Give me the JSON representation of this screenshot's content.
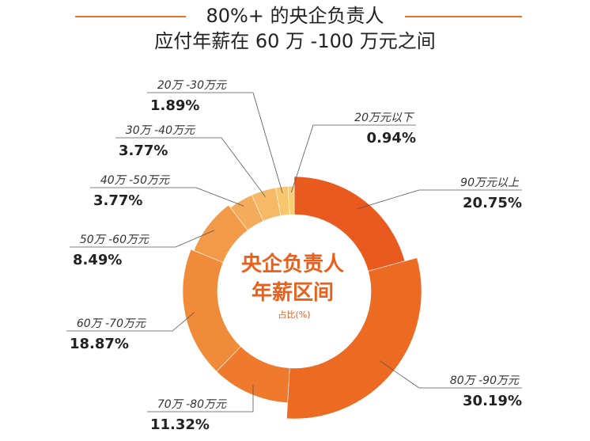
{
  "title": {
    "line1": "80%+ 的央企负责人",
    "line2": "应付年薪在 60 万 -100 万元之间"
  },
  "center": {
    "line1": "央企负责人",
    "line2": "年薪区间",
    "line3": "占比(%)"
  },
  "colors": {
    "accent": "#E8742A",
    "center_text": "#E8601C"
  },
  "chart_data": {
    "type": "pie",
    "variant": "donut",
    "title": "80%+ 的央企负责人 应付年薪在 60 万 -100 万元之间",
    "unit": "%",
    "slices": [
      {
        "label": "90万元以上",
        "value": 20.75,
        "display": "20.75%",
        "color": "#E85A1E"
      },
      {
        "label": "80万 -90万元",
        "value": 30.19,
        "display": "30.19%",
        "color": "#EC6A22"
      },
      {
        "label": "70万 -80万元",
        "value": 11.32,
        "display": "11.32%",
        "color": "#EF7A2E"
      },
      {
        "label": "60万 -70万元",
        "value": 18.87,
        "display": "18.87%",
        "color": "#F08B3A"
      },
      {
        "label": "50万 -60万元",
        "value": 8.49,
        "display": "8.49%",
        "color": "#F29A48"
      },
      {
        "label": "40万 -50万元",
        "value": 3.77,
        "display": "3.77%",
        "color": "#F4AB5A"
      },
      {
        "label": "30万 -40万元",
        "value": 3.77,
        "display": "3.77%",
        "color": "#F6BA66"
      },
      {
        "label": "20万 -30万元",
        "value": 1.89,
        "display": "1.89%",
        "color": "#F8C66C"
      },
      {
        "label": "20万元以下",
        "value": 0.94,
        "display": "0.94%",
        "color": "#F9CF6E"
      }
    ]
  }
}
